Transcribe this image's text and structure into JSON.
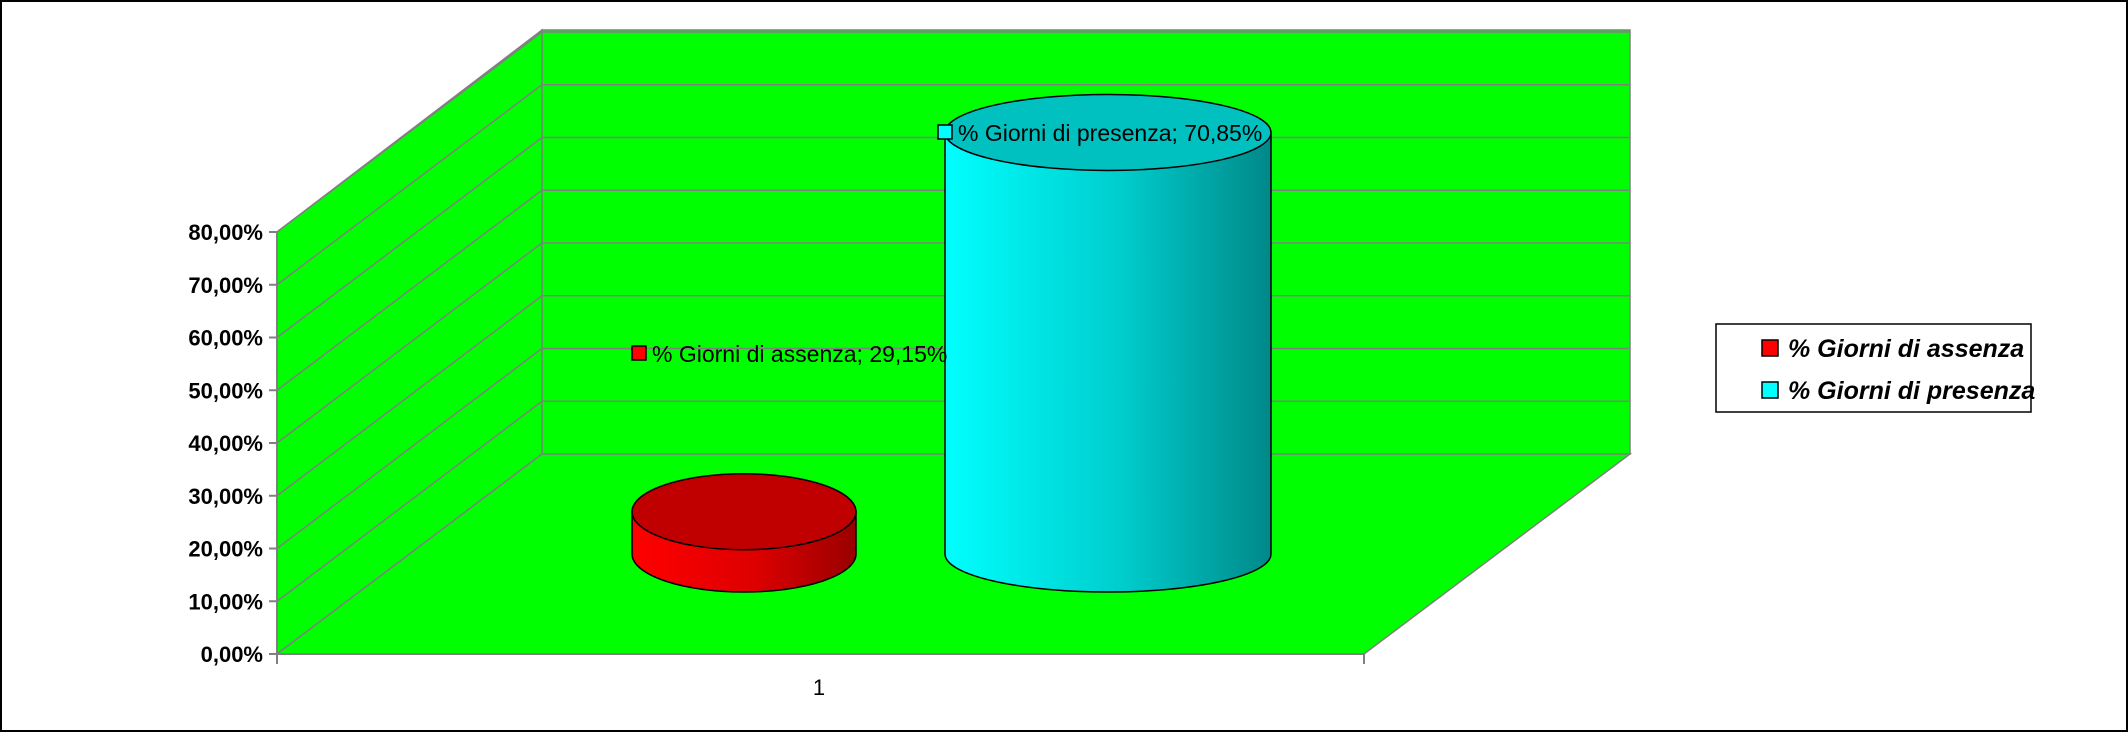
{
  "chart_data": {
    "type": "bar",
    "categories": [
      "1"
    ],
    "series": [
      {
        "name": "% Giorni di assenza",
        "values": [
          29.15
        ],
        "color": "#ff0000",
        "label": "% Giorni di assenza; 29,15%"
      },
      {
        "name": "% Giorni di presenza",
        "values": [
          70.85
        ],
        "color": "#00ffff",
        "label": "% Giorni di presenza; 70,85%"
      }
    ],
    "yticks": [
      "0,00%",
      "10,00%",
      "20,00%",
      "30,00%",
      "40,00%",
      "50,00%",
      "60,00%",
      "70,00%",
      "80,00%"
    ],
    "ylim": [
      0,
      80
    ],
    "title": "",
    "xlabel": "",
    "ylabel": "",
    "grid": true,
    "legend": "right",
    "wall_color": "#00ff00",
    "bar_shape": "cylinder"
  }
}
